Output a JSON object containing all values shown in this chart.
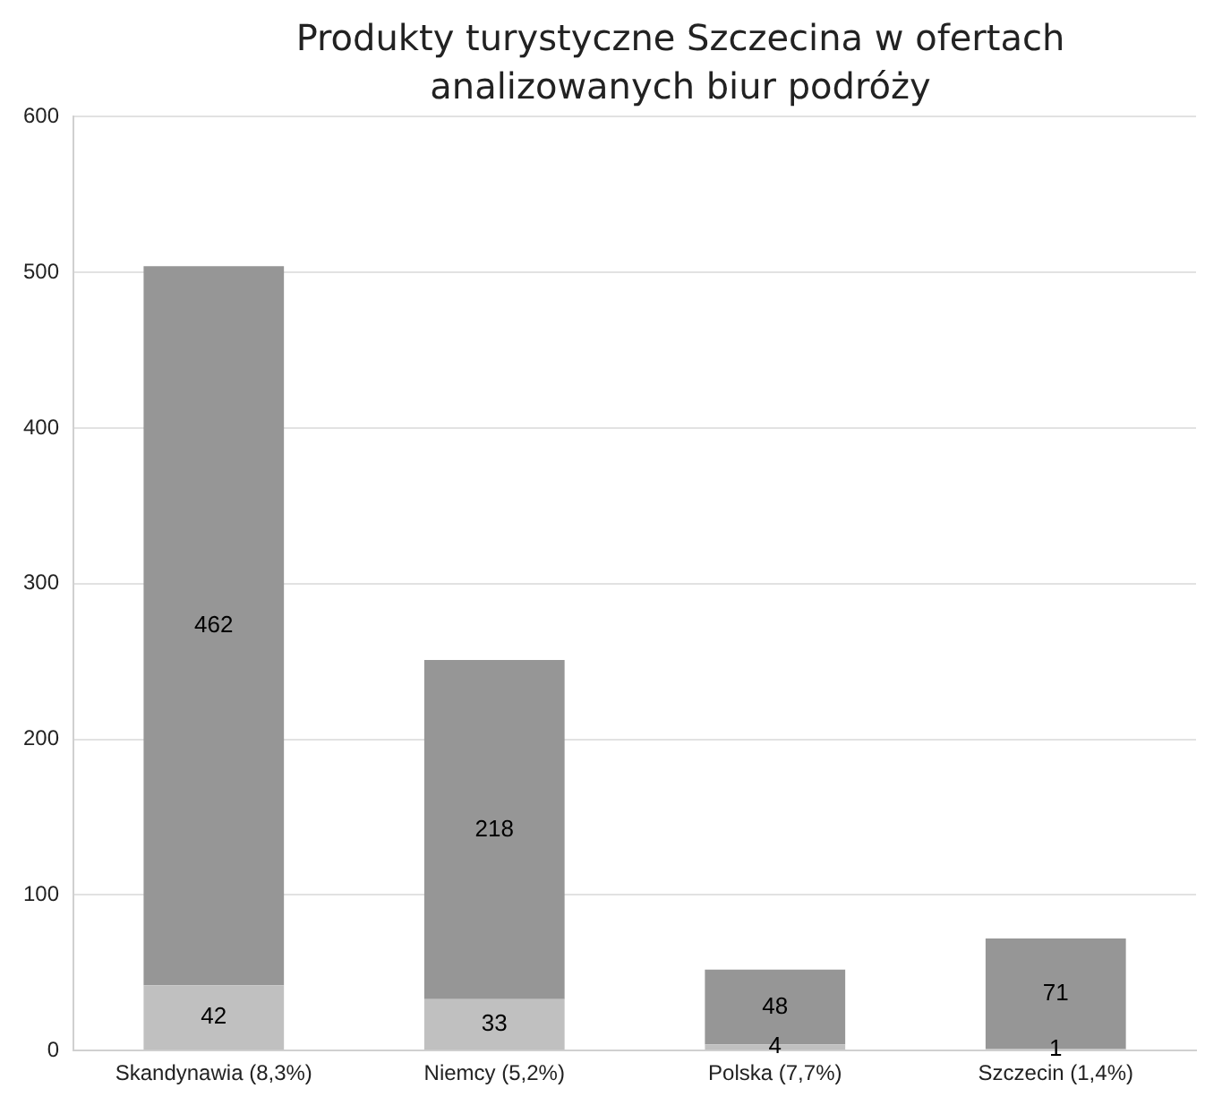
{
  "chart_data": {
    "type": "bar",
    "title": "Produkty turystyczne Szczecina w ofertach analizowanych biur podróży",
    "categories": [
      "Skandynawia (8,3%)",
      "Niemcy (5,2%)",
      "Polska (7,7%)",
      "Szczecin (1,4%)"
    ],
    "stacked": true,
    "series": [
      {
        "color": "#c0c0c0",
        "values": [
          42,
          33,
          4,
          1
        ]
      },
      {
        "color": "#969696",
        "values": [
          462,
          218,
          48,
          71
        ]
      }
    ],
    "ylim": [
      0,
      600
    ],
    "yticks": [
      0,
      100,
      200,
      300,
      400,
      500,
      600
    ],
    "grid": "y",
    "data_labels": true,
    "legend": false
  }
}
